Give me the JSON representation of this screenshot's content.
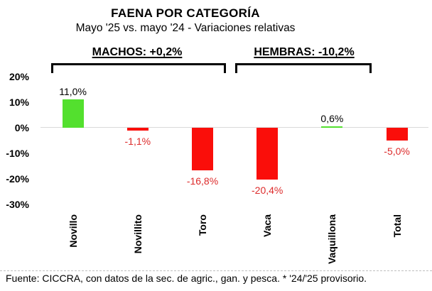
{
  "header": {
    "title": "FAENA POR CATEGORÍA",
    "subtitle": "Mayo '25 vs. mayo '24 - Variaciones relativas"
  },
  "chart_data": {
    "type": "bar",
    "title": "FAENA POR CATEGORÍA",
    "subtitle": "Mayo '25 vs. mayo '24 - Variaciones relativas",
    "categories": [
      "Novillo",
      "Novillito",
      "Toro",
      "Vaca",
      "Vaquillona",
      "Total"
    ],
    "values": [
      11.0,
      -1.1,
      -16.8,
      -20.4,
      0.6,
      -5.0
    ],
    "bar_labels": [
      "11,0%",
      "-1,1%",
      "-16,8%",
      "-20,4%",
      "0,6%",
      "-5,0%"
    ],
    "bar_colors": [
      "positive",
      "negative",
      "negative",
      "negative",
      "positive",
      "negative"
    ],
    "xlabel": "",
    "ylabel": "",
    "ylim": [
      -30,
      20
    ],
    "ytick_values": [
      20,
      10,
      0,
      -10,
      -20,
      -30
    ],
    "ytick_labels": [
      "20%",
      "10%",
      "0%",
      "-10%",
      "-20%",
      "-30%"
    ],
    "grid": "zero line only",
    "legend": "none",
    "group_annotations": [
      {
        "label": "MACHOS: +0,2%",
        "categories": [
          "Novillo",
          "Novillito",
          "Toro"
        ]
      },
      {
        "label": "HEMBRAS: -10,2%",
        "categories": [
          "Vaca",
          "Vaquillona"
        ]
      }
    ]
  },
  "colors": {
    "positive_bar": "#53e02e",
    "negative_bar": "#fa0e0a",
    "positive_label_text": "#000000",
    "negative_label_text": "#dd2b2b",
    "zero_gridline": "#d9d9d9",
    "bracket": "#000000"
  },
  "footer": {
    "text": "Fuente: CICCRA, con datos de la sec. de agric., gan. y pesca. * '24/'25 provisorio."
  }
}
